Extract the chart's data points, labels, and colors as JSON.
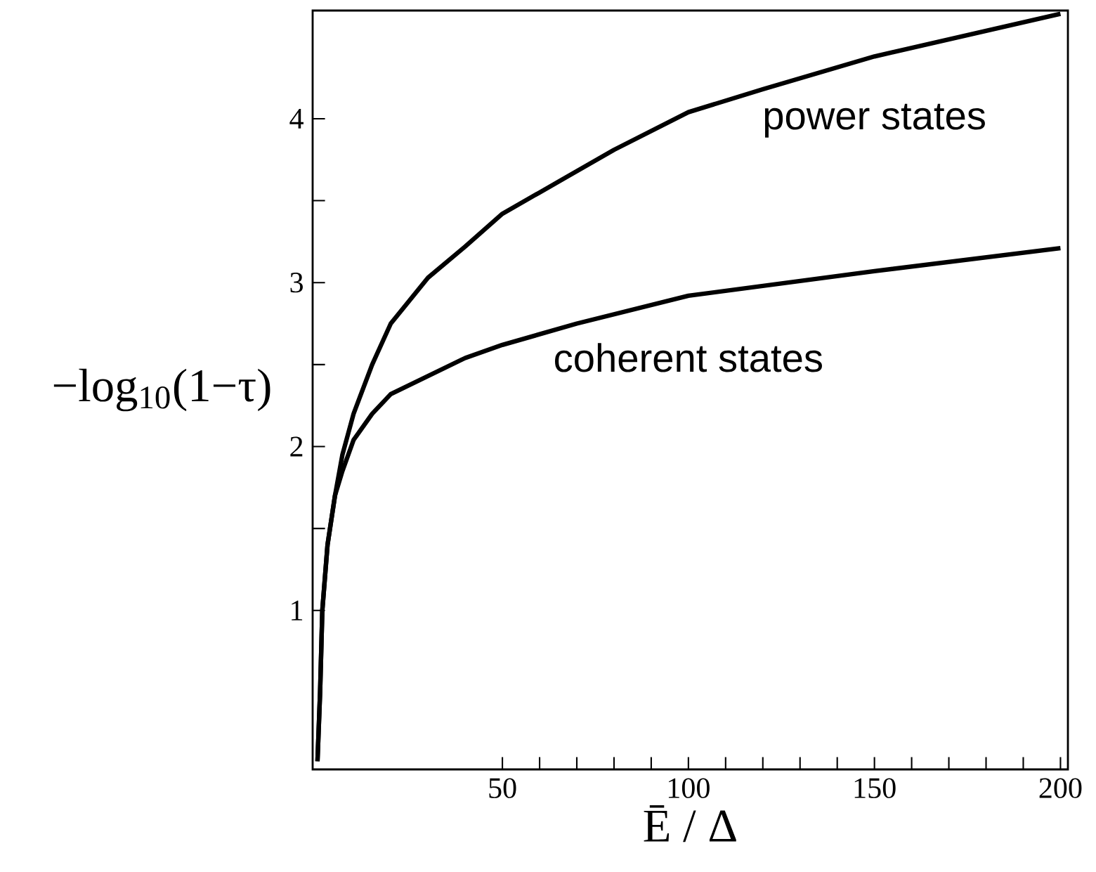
{
  "chart_data": {
    "type": "line",
    "xlabel": "Ē / Δ",
    "ylabel": "−log$_{10}$(1−τ)",
    "xlim": [
      -1,
      202
    ],
    "ylim": [
      0.03,
      4.66
    ],
    "xticks": [
      50,
      100,
      150,
      200
    ],
    "yticks": [
      1,
      2,
      3,
      4
    ],
    "series": [
      {
        "name": "power states",
        "color": "#000000",
        "x": [
          0.3,
          1,
          1.6,
          3,
          5,
          7,
          10,
          15,
          20,
          30,
          40,
          50,
          60,
          80,
          100,
          120,
          150,
          175,
          200
        ],
        "values": [
          0.08,
          0.5,
          1.0,
          1.4,
          1.7,
          1.95,
          2.2,
          2.5,
          2.75,
          3.03,
          3.22,
          3.42,
          3.55,
          3.81,
          4.04,
          4.18,
          4.38,
          4.51,
          4.64
        ]
      },
      {
        "name": "coherent states",
        "color": "#000000",
        "x": [
          0.3,
          1,
          1.6,
          3,
          5,
          7,
          10,
          15,
          20,
          30,
          40,
          50,
          70,
          100,
          150,
          200
        ],
        "values": [
          0.08,
          0.5,
          1.0,
          1.4,
          1.7,
          1.85,
          2.04,
          2.2,
          2.32,
          2.43,
          2.54,
          2.62,
          2.75,
          2.92,
          3.07,
          3.21
        ]
      }
    ]
  }
}
